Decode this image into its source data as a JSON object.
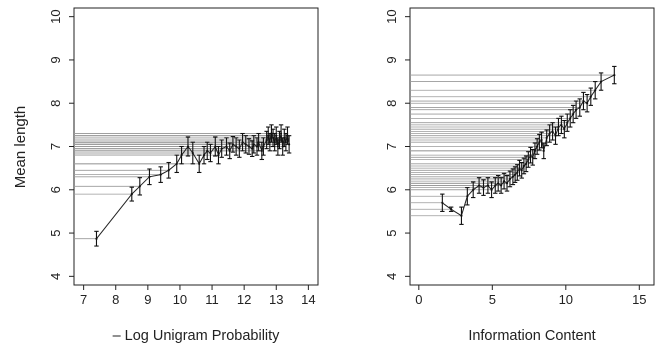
{
  "chart_data": [
    {
      "type": "line",
      "ylabel": "Mean length",
      "xlabel": "– Log Unigram Probability",
      "xlim": [
        6.7,
        14.3
      ],
      "ylim": [
        3.8,
        10.2
      ],
      "xticks": [
        7,
        8,
        9,
        10,
        11,
        12,
        13,
        14
      ],
      "yticks": [
        4,
        5,
        6,
        7,
        8,
        9,
        10
      ],
      "grid": false,
      "series": [
        {
          "x": [
            7.4,
            8.5,
            8.75,
            9.05,
            9.4,
            9.65,
            9.9,
            10.05,
            10.25,
            10.4,
            10.6,
            10.75,
            10.85,
            10.95,
            11.1,
            11.2,
            11.3,
            11.45,
            11.55,
            11.65,
            11.75,
            11.85,
            11.95,
            12.05,
            12.15,
            12.25,
            12.3,
            12.4,
            12.45,
            12.55,
            12.6,
            12.7,
            12.75,
            12.8,
            12.85,
            12.9,
            12.95,
            13.0,
            13.05,
            13.1,
            13.15,
            13.2,
            13.25,
            13.3,
            13.35,
            13.4
          ],
          "y": [
            4.87,
            5.9,
            6.08,
            6.3,
            6.35,
            6.45,
            6.6,
            6.8,
            7.0,
            6.85,
            6.6,
            6.8,
            6.9,
            6.85,
            7.0,
            6.8,
            6.95,
            7.0,
            6.9,
            7.05,
            7.0,
            6.95,
            7.1,
            7.05,
            7.0,
            6.95,
            7.05,
            7.0,
            7.1,
            6.9,
            7.0,
            7.15,
            7.25,
            7.1,
            7.3,
            7.2,
            7.1,
            7.25,
            7.0,
            7.15,
            7.3,
            7.0,
            7.2,
            7.1,
            7.25,
            7.05
          ],
          "err": [
            0.17,
            0.16,
            0.2,
            0.18,
            0.18,
            0.18,
            0.2,
            0.2,
            0.22,
            0.25,
            0.2,
            0.2,
            0.2,
            0.2,
            0.22,
            0.2,
            0.2,
            0.2,
            0.18,
            0.18,
            0.2,
            0.2,
            0.2,
            0.2,
            0.18,
            0.18,
            0.2,
            0.2,
            0.2,
            0.2,
            0.2,
            0.2,
            0.2,
            0.2,
            0.2,
            0.2,
            0.2,
            0.2,
            0.2,
            0.2,
            0.2,
            0.2,
            0.2,
            0.2,
            0.2,
            0.2
          ]
        }
      ]
    },
    {
      "type": "line",
      "ylabel": "",
      "xlabel": "Information Content",
      "xlim": [
        -0.6,
        16.0
      ],
      "ylim": [
        3.8,
        10.2
      ],
      "xticks": [
        0,
        5,
        10,
        15
      ],
      "yticks": [
        4,
        5,
        6,
        7,
        8,
        9,
        10
      ],
      "grid": false,
      "series": [
        {
          "x": [
            1.6,
            2.2,
            2.9,
            3.3,
            3.7,
            4.1,
            4.4,
            4.7,
            4.95,
            5.2,
            5.4,
            5.6,
            5.8,
            6.0,
            6.2,
            6.4,
            6.55,
            6.7,
            6.85,
            7.0,
            7.15,
            7.3,
            7.45,
            7.6,
            7.75,
            7.9,
            8.05,
            8.2,
            8.35,
            8.5,
            8.7,
            8.9,
            9.1,
            9.3,
            9.5,
            9.7,
            9.9,
            10.1,
            10.3,
            10.5,
            10.7,
            10.95,
            11.2,
            11.45,
            11.7,
            12.0,
            12.4,
            13.3
          ],
          "y": [
            5.7,
            5.55,
            5.4,
            5.85,
            6.0,
            6.1,
            6.05,
            6.1,
            6.0,
            6.1,
            6.15,
            6.1,
            6.2,
            6.15,
            6.25,
            6.3,
            6.35,
            6.4,
            6.5,
            6.45,
            6.55,
            6.6,
            6.7,
            6.8,
            6.75,
            6.9,
            7.0,
            7.1,
            7.15,
            6.9,
            7.2,
            7.3,
            7.35,
            7.25,
            7.45,
            7.5,
            7.4,
            7.55,
            7.65,
            7.75,
            7.85,
            7.9,
            8.05,
            8.0,
            8.15,
            8.3,
            8.5,
            8.65
          ],
          "err": [
            0.2,
            0.05,
            0.2,
            0.2,
            0.18,
            0.18,
            0.18,
            0.18,
            0.18,
            0.18,
            0.18,
            0.18,
            0.18,
            0.18,
            0.18,
            0.18,
            0.18,
            0.18,
            0.18,
            0.18,
            0.18,
            0.18,
            0.18,
            0.18,
            0.18,
            0.18,
            0.18,
            0.18,
            0.18,
            0.18,
            0.18,
            0.2,
            0.2,
            0.2,
            0.2,
            0.2,
            0.2,
            0.2,
            0.2,
            0.2,
            0.2,
            0.2,
            0.2,
            0.2,
            0.2,
            0.2,
            0.2,
            0.2
          ]
        }
      ]
    }
  ]
}
